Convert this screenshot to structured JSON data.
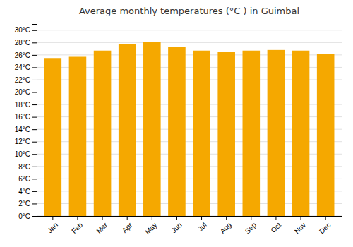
{
  "chart_data": {
    "type": "bar",
    "title": "Average monthly temperatures (°C ) in Guimbal",
    "categories": [
      "Jan",
      "Feb",
      "Mar",
      "Apr",
      "May",
      "Jun",
      "Jul",
      "Aug",
      "Sep",
      "Oct",
      "Nov",
      "Dec"
    ],
    "values": [
      25.5,
      25.7,
      26.7,
      27.8,
      28.1,
      27.3,
      26.7,
      26.5,
      26.7,
      26.8,
      26.7,
      26.1
    ],
    "color": "#F5A800",
    "ylim": [
      0,
      31
    ],
    "yticks": [
      {
        "value": 0,
        "label": "0°C"
      },
      {
        "value": 2,
        "label": "2°C"
      },
      {
        "value": 4,
        "label": "4°C"
      },
      {
        "value": 6,
        "label": "6°C"
      },
      {
        "value": 8,
        "label": "8°C"
      },
      {
        "value": 10,
        "label": "10°C"
      },
      {
        "value": 12,
        "label": "12°C"
      },
      {
        "value": 14,
        "label": "14°C"
      },
      {
        "value": 16,
        "label": "16°C"
      },
      {
        "value": 18,
        "label": "18°C"
      },
      {
        "value": 20,
        "label": "20°C"
      },
      {
        "value": 22,
        "label": "22°C"
      },
      {
        "value": 24,
        "label": "24°C"
      },
      {
        "value": 26,
        "label": "26°C"
      },
      {
        "value": 28,
        "label": "28°C"
      },
      {
        "value": 30,
        "label": "30°C"
      }
    ],
    "grid": true
  }
}
